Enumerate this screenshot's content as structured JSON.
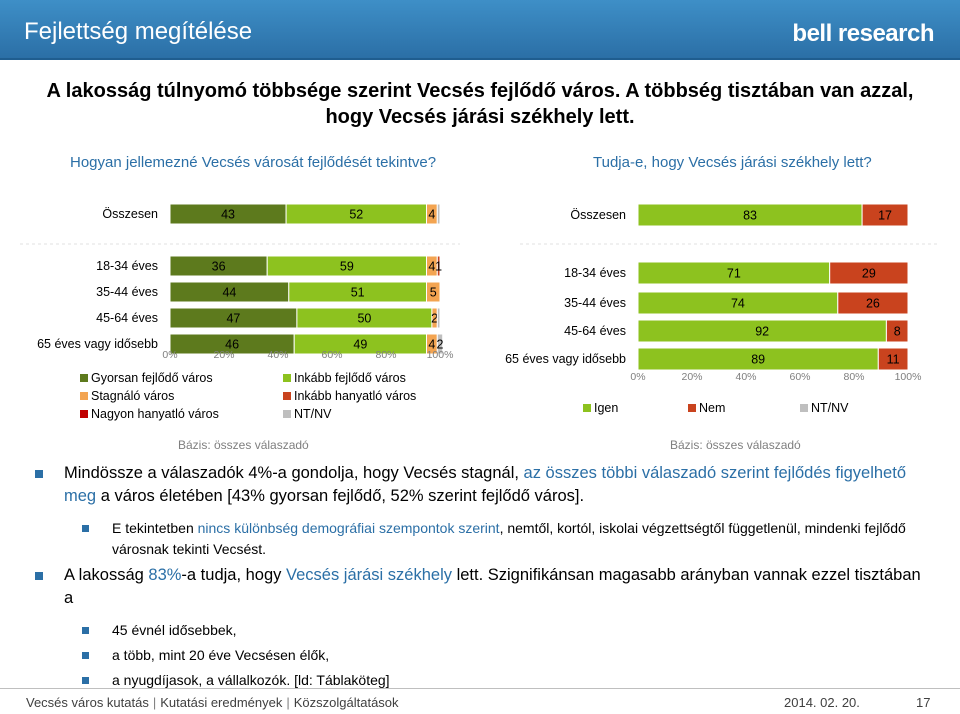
{
  "header": {
    "title": "Fejlettség megítélése",
    "logo": "bell research"
  },
  "headline": "A lakosság túlnyomó többsége szerint Vecsés fejlődő város. A többség tisztában van azzal, hogy Vecsés járási székhely lett.",
  "questions": {
    "left": "Hogyan jellemezné Vecsés városát fejlődését tekintve?",
    "right": "Tudja-e, hogy Vecsés járási székhely lett?"
  },
  "notes": {
    "left": "Bázis: összes válaszadó",
    "right": "Bázis: összes válaszadó"
  },
  "colors": {
    "dark_green": "#5d7a1d",
    "light_green": "#8dc21f",
    "light_orange": "#f3a451",
    "dark_orange": "#c9431e",
    "gray": "#bfbfbf",
    "igen": "#8dc21f",
    "nem": "#c9431e",
    "ntnv": "#bfbfbf",
    "accent": "#2b6fa6"
  },
  "chart_data": [
    {
      "type": "bar",
      "orientation": "horizontal",
      "stacked": true,
      "categories": [
        "Összesen",
        "18-34 éves",
        "35-44 éves",
        "45-64 éves",
        "65 éves vagy idősebb"
      ],
      "series": [
        {
          "name": "Gyorsan fejlődő város",
          "color": "#5d7a1d",
          "values": [
            43,
            36,
            44,
            47,
            46
          ],
          "labels": [
            "43",
            "36",
            "44",
            "47",
            "46"
          ]
        },
        {
          "name": "Inkább fejlődő város",
          "color": "#8dc21f",
          "values": [
            52,
            59,
            51,
            50,
            49
          ],
          "labels": [
            "52",
            "59",
            "51",
            "50",
            "49"
          ]
        },
        {
          "name": "Stagnáló város",
          "color": "#f3a451",
          "values": [
            4,
            4,
            5,
            2,
            4
          ],
          "labels": [
            "4",
            "4",
            "5",
            "2",
            "4"
          ]
        },
        {
          "name": "Inkább hanyatló város",
          "color": "#c9431e",
          "values": [
            0,
            1,
            0,
            0,
            0
          ],
          "labels": [
            "",
            "1",
            "",
            "",
            ""
          ]
        },
        {
          "name": "Nagyon hanyatló város",
          "color": "#c00000",
          "values": [
            0,
            0,
            0,
            0,
            0
          ],
          "labels": [
            "",
            "",
            "",
            "",
            ""
          ]
        },
        {
          "name": "NT/NV",
          "color": "#bfbfbf",
          "values": [
            1,
            0,
            0,
            1,
            2
          ],
          "labels": [
            "",
            "",
            "",
            "",
            "2"
          ]
        }
      ],
      "xlim": [
        0,
        100
      ],
      "xticks": [
        "0%",
        "20%",
        "40%",
        "60%",
        "80%",
        "100%"
      ],
      "legend_items": [
        "Gyorsan fejlődő város",
        "Inkább fejlődő város",
        "Stagnáló város",
        "Inkább hanyatló város",
        "Nagyon hanyatló város",
        "NT/NV"
      ]
    },
    {
      "type": "bar",
      "orientation": "horizontal",
      "stacked": true,
      "categories": [
        "Összesen",
        "18-34 éves",
        "35-44 éves",
        "45-64 éves",
        "65 éves vagy idősebb"
      ],
      "series": [
        {
          "name": "Igen",
          "color": "#8dc21f",
          "values": [
            83,
            71,
            74,
            92,
            89
          ],
          "labels": [
            "83",
            "71",
            "74",
            "92",
            "89"
          ]
        },
        {
          "name": "Nem",
          "color": "#c9431e",
          "values": [
            17,
            29,
            26,
            8,
            11
          ],
          "labels": [
            "17",
            "29",
            "26",
            "8",
            "11"
          ]
        },
        {
          "name": "NT/NV",
          "color": "#bfbfbf",
          "values": [
            0,
            0,
            0,
            0,
            0
          ],
          "labels": [
            "",
            "",
            "",
            "",
            ""
          ]
        }
      ],
      "xlim": [
        0,
        100
      ],
      "xticks": [
        "0%",
        "20%",
        "40%",
        "60%",
        "80%",
        "100%"
      ],
      "legend_items": [
        "Igen",
        "Nem",
        "NT/NV"
      ]
    }
  ],
  "bullets": [
    {
      "level": 1,
      "parts": [
        {
          "t": "Mindössze a válaszadók 4%-a gondolja, hogy Vecsés stagnál, "
        },
        {
          "t": "az összes többi válaszadó szerint fejlődés figyelhető meg",
          "hl": true
        },
        {
          "t": " a város életében [43% gyorsan fejlődő, 52% szerint fejlődő város]."
        }
      ]
    },
    {
      "level": 2,
      "parts": [
        {
          "t": "E tekintetben "
        },
        {
          "t": "nincs különbség demográfiai szempontok szerint",
          "hl": true
        },
        {
          "t": ", nemtől, kortól, iskolai végzettségtől függetlenül, mindenki fejlődő városnak tekinti Vecsést."
        }
      ]
    },
    {
      "level": 1,
      "parts": [
        {
          "t": "A lakosság "
        },
        {
          "t": "83%",
          "hl": true
        },
        {
          "t": "-a tudja, hogy "
        },
        {
          "t": "Vecsés járási székhely",
          "hl": true
        },
        {
          "t": " lett. Szignifikánsan magasabb arányban vannak ezzel tisztában a"
        }
      ]
    },
    {
      "level": 2,
      "parts": [
        {
          "t": "45 évnél idősebbek,"
        }
      ]
    },
    {
      "level": 2,
      "parts": [
        {
          "t": "a több, mint 20 éve Vecsésen élők,"
        }
      ]
    },
    {
      "level": 2,
      "parts": [
        {
          "t": "a nyugdíjasok, a vállalkozók. [ld: Táblaköteg]"
        }
      ]
    }
  ],
  "footer": {
    "items": [
      "Vecsés város kutatás",
      "Kutatási eredmények",
      "Közszolgáltatások"
    ],
    "date": "2014. 02. 20.",
    "page": "17"
  }
}
